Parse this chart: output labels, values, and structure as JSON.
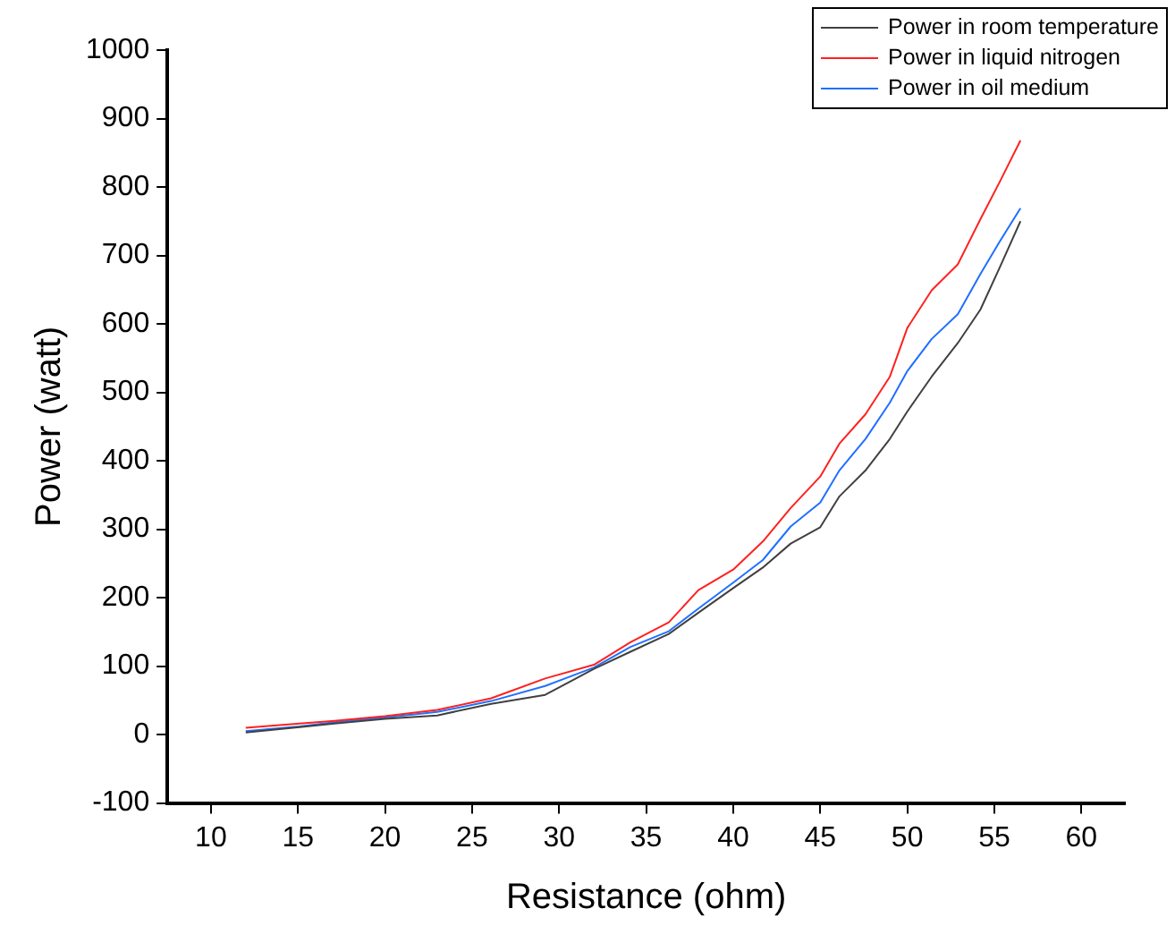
{
  "chart_data": {
    "type": "line",
    "xlabel": "Resistance (ohm)",
    "ylabel": "Power (watt)",
    "x": [
      12,
      15.1,
      17.1,
      20,
      23,
      26.1,
      29.2,
      32,
      34.1,
      36.3,
      38,
      40,
      41.7,
      43.3,
      45,
      46.1,
      47.6,
      49,
      50,
      51.4,
      52.9,
      54.2,
      55.3,
      56.5
    ],
    "series": [
      {
        "name": "Power in room temperature",
        "color": "#404040",
        "values": [
          3,
          11,
          16,
          23,
          28,
          45,
          58,
          96,
          121,
          147,
          178,
          214,
          244,
          279,
          303,
          348,
          386,
          432,
          472,
          523,
          572,
          621,
          682,
          750
        ]
      },
      {
        "name": "Power in liquid nitrogen",
        "color": "#ff2020",
        "values": [
          10,
          16,
          20,
          27,
          36,
          53,
          82,
          102,
          135,
          164,
          211,
          241,
          282,
          331,
          377,
          425,
          468,
          523,
          594,
          649,
          687,
          753,
          807,
          868
        ]
      },
      {
        "name": "Power in oil medium",
        "color": "#2070ff",
        "values": [
          5,
          12,
          18,
          25,
          33,
          49,
          71,
          98,
          128,
          151,
          184,
          222,
          255,
          304,
          339,
          386,
          432,
          485,
          531,
          578,
          614,
          673,
          720,
          769
        ]
      }
    ],
    "xlim": [
      7.5,
      62.5
    ],
    "xticks": [
      10,
      15,
      20,
      25,
      30,
      35,
      40,
      45,
      50,
      55,
      60
    ],
    "ylim": [
      -100,
      1000
    ],
    "yticks": [
      -100,
      0,
      100,
      200,
      300,
      400,
      500,
      600,
      700,
      800,
      900,
      1000
    ],
    "grid": false,
    "legend": "top right",
    "marker": "none",
    "line_style": "solid"
  }
}
